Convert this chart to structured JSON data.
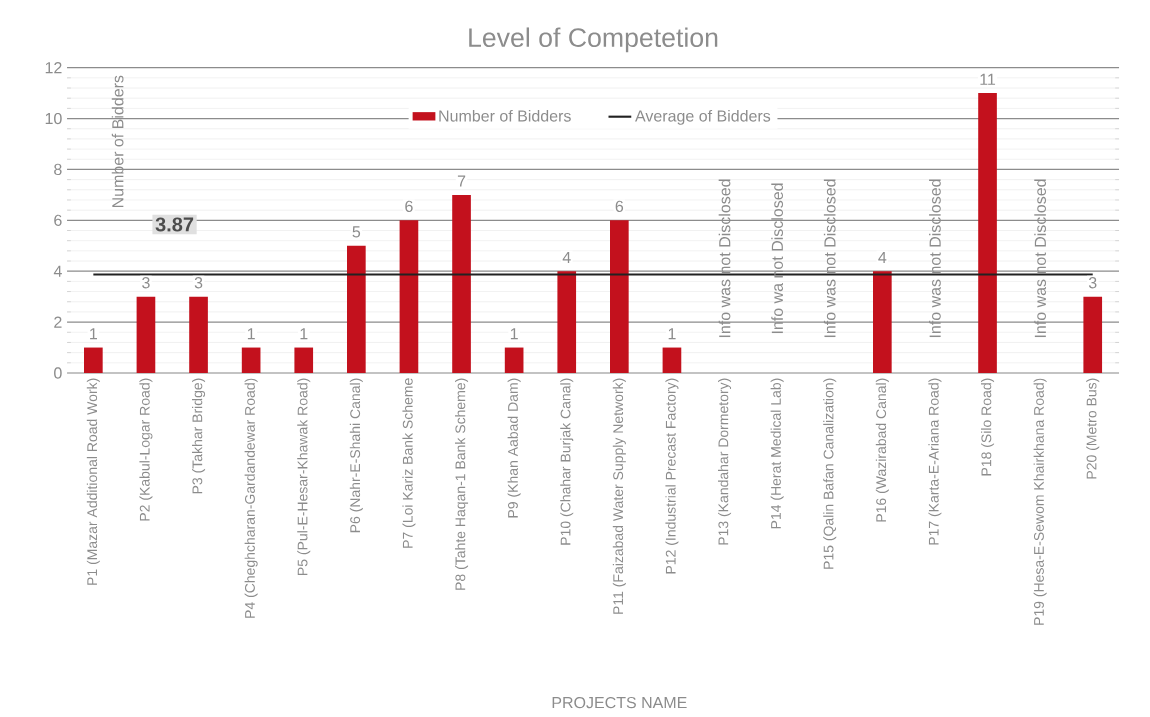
{
  "chart_data": {
    "type": "bar",
    "title": "Level of Competetion",
    "xlabel": "PROJECTS NAME",
    "ylabel": "Number of Bidders",
    "categories": [
      "P1 (Mazar Additional Road Work)",
      "P2 (Kabul-Logar Road)",
      "P3 (Takhar Bridge)",
      "P4 (Cheghcharan-Gardandewar Road)",
      "P5 (Pul-E-Hesar-Khawak Road)",
      "P6 (Nahr-E-Shahi Canal)",
      "P7 (Loi Kariz Bank Scheme",
      "P8 (Tahte Haqan-1 Bank Scheme)",
      "P9 (Khan Aabad Dam)",
      "P10 (Chahar Burjak Canal)",
      "P11 (Faizabad Water Supply Network)",
      "P12 (Industrial Precast Factory)",
      "P13 (Kandahar Dormetory)",
      "P14 (Herat Medical Lab)",
      "P15 (Qalin Bafan Canalization)",
      "P16 (Wazirabad Canal)",
      "P17 (Karta-E-Ariana Road)",
      "P18 (Silo Road)",
      "P19 (Hesa-E-Sewom Khairkhana Road)",
      "P20 (Metro Bus)"
    ],
    "series": [
      {
        "name": "Number of Bidders",
        "color": "#c3111d",
        "values": [
          1,
          3,
          3,
          1,
          1,
          5,
          6,
          7,
          1,
          4,
          6,
          1,
          null,
          null,
          null,
          4,
          null,
          11,
          null,
          3
        ],
        "value_labels": [
          "1",
          "3",
          "3",
          "1",
          "1",
          "5",
          "6",
          "7",
          "1",
          "4",
          "6",
          "1",
          null,
          null,
          null,
          "4",
          null,
          "11",
          null,
          "3"
        ]
      },
      {
        "name": "Average of Bidders",
        "type": "line",
        "color": "#222222",
        "values": [
          3.87,
          3.87,
          3.87,
          3.87,
          3.87,
          3.87,
          3.87,
          3.87,
          3.87,
          3.87,
          3.87,
          3.87,
          3.87,
          3.87,
          3.87,
          3.87,
          3.87,
          3.87,
          3.87,
          3.87
        ],
        "value_labels": [
          null,
          null,
          "3.87",
          null,
          null,
          null,
          null,
          null,
          null,
          null,
          null,
          null,
          null,
          null,
          null,
          null,
          null,
          null,
          null,
          null
        ]
      }
    ],
    "ylim": [
      0,
      12
    ],
    "yticks": [
      0,
      2,
      4,
      6,
      8,
      10,
      12
    ],
    "grid": "y",
    "legend": "top",
    "annotations": [
      "Info was not Disclosed",
      "Info wa not Disclosed",
      "Info was not Disclosed",
      "Info was not Disclosed",
      "Info was not Disclosed"
    ]
  }
}
